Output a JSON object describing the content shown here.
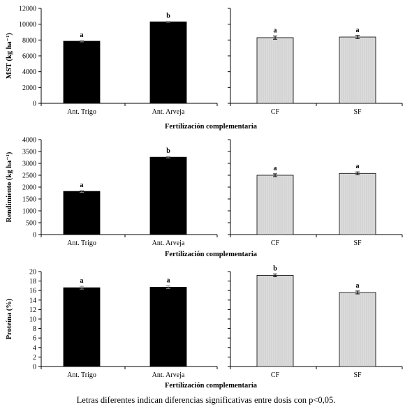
{
  "chart_data": [
    {
      "type": "bar",
      "ylabel": "MST (kg ha⁻¹)",
      "xlabel": "Fertilización complementaria",
      "ylim": [
        0,
        12000
      ],
      "yticks": [
        0,
        2000,
        4000,
        6000,
        8000,
        10000,
        12000
      ],
      "left": {
        "categories": [
          "Ant. Trigo",
          "Ant. Arveja"
        ],
        "values": [
          7850,
          10300
        ],
        "errors": [
          80,
          60
        ],
        "letters": [
          "a",
          "b"
        ],
        "color": "#000000"
      },
      "right": {
        "categories": [
          "CF",
          "SF"
        ],
        "values": [
          8300,
          8380
        ],
        "errors": [
          200,
          200
        ],
        "letters": [
          "a",
          "a"
        ],
        "color": "#dcdcdc"
      }
    },
    {
      "type": "bar",
      "ylabel": "Rendimiento (kg ha⁻¹)",
      "xlabel": "Fertilización complementaria",
      "ylim": [
        0,
        4000
      ],
      "yticks": [
        0,
        500,
        1000,
        1500,
        2000,
        2500,
        3000,
        3500,
        4000
      ],
      "left": {
        "categories": [
          "Ant. Trigo",
          "Ant. Arveja"
        ],
        "values": [
          1820,
          3260
        ],
        "errors": [
          40,
          30
        ],
        "letters": [
          "a",
          "b"
        ],
        "color": "#000000"
      },
      "right": {
        "categories": [
          "CF",
          "SF"
        ],
        "values": [
          2500,
          2580
        ],
        "errors": [
          60,
          60
        ],
        "letters": [
          "a",
          "a"
        ],
        "color": "#dcdcdc"
      }
    },
    {
      "type": "bar",
      "ylabel": "Proteína (%)",
      "xlabel": "Fertilización complementaria",
      "ylim": [
        0,
        20
      ],
      "yticks": [
        0,
        2,
        4,
        6,
        8,
        10,
        12,
        14,
        16,
        18,
        20
      ],
      "left": {
        "categories": [
          "Ant. Trigo",
          "Ant. Arveja"
        ],
        "values": [
          16.6,
          16.7
        ],
        "errors": [
          0.3,
          0.3
        ],
        "letters": [
          "a",
          "a"
        ],
        "color": "#000000"
      },
      "right": {
        "categories": [
          "CF",
          "SF"
        ],
        "values": [
          19.2,
          15.6
        ],
        "errors": [
          0.3,
          0.3
        ],
        "letters": [
          "b",
          "a"
        ],
        "color": "#dcdcdc"
      }
    }
  ],
  "footnote": "Letras diferentes indican diferencias significativas entre dosis con p<0,05."
}
